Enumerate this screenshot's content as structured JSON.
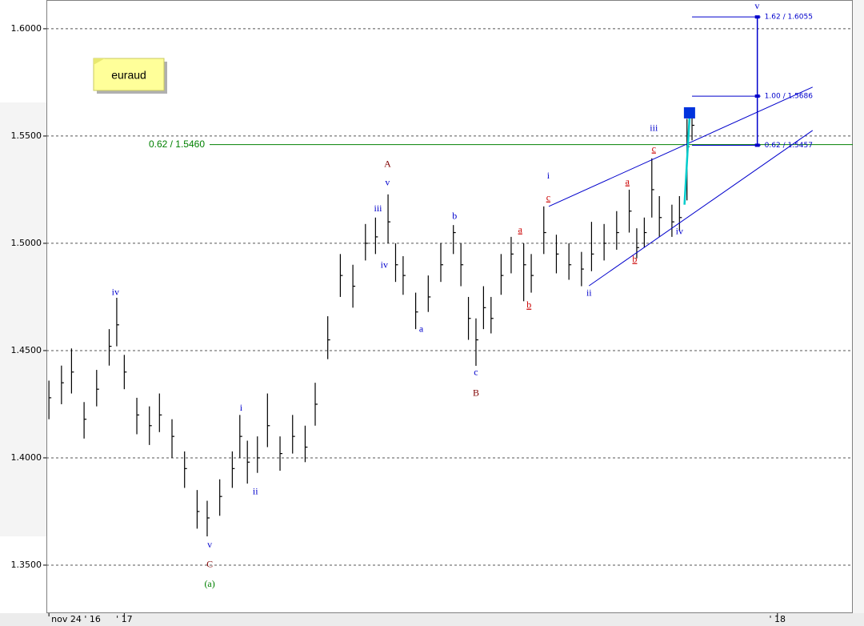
{
  "chart_data": {
    "type": "ohlc",
    "title": "euraud",
    "xlim": [
      -31,
      290
    ],
    "ylim": [
      1.3276,
      1.6134
    ],
    "yticks": [
      {
        "value": 1.35,
        "label": "1.3500"
      },
      {
        "value": 1.4,
        "label": "1.4000"
      },
      {
        "value": 1.45,
        "label": "1.4500"
      },
      {
        "value": 1.5,
        "label": "1.5000"
      },
      {
        "value": 1.55,
        "label": "1.5500"
      },
      {
        "value": 1.6,
        "label": "1.6000"
      }
    ],
    "xticks": [
      {
        "value": -30,
        "label": "nov 24 ' 16"
      },
      {
        "value": 0,
        "label": "' 17"
      },
      {
        "value": 260,
        "label": "' 18"
      }
    ],
    "grid": true,
    "color": "#000000",
    "x": [
      -30,
      -25,
      -21,
      -16,
      -11,
      -6,
      -3,
      0,
      5,
      10,
      14,
      19,
      24,
      29,
      33,
      38,
      43,
      46,
      49,
      53,
      57,
      62,
      67,
      72,
      76,
      81,
      86,
      91,
      96,
      100,
      105,
      108,
      111,
      116,
      121,
      126,
      131,
      134,
      137,
      140,
      143,
      146,
      150,
      154,
      159,
      162,
      167,
      172,
      177,
      182,
      186,
      191,
      196,
      201,
      204,
      207,
      210,
      213,
      218,
      221,
      224,
      226
    ],
    "high": [
      1.436,
      1.443,
      1.451,
      1.426,
      1.441,
      1.46,
      1.4746,
      1.448,
      1.428,
      1.424,
      1.43,
      1.418,
      1.403,
      1.385,
      1.38,
      1.39,
      1.403,
      1.42,
      1.408,
      1.41,
      1.43,
      1.41,
      1.42,
      1.415,
      1.435,
      1.466,
      1.495,
      1.49,
      1.509,
      1.512,
      1.5228,
      1.5,
      1.494,
      1.477,
      1.485,
      1.5,
      1.5085,
      1.5,
      1.475,
      1.465,
      1.48,
      1.475,
      1.495,
      1.503,
      1.5,
      1.495,
      1.5172,
      1.504,
      1.5,
      1.496,
      1.51,
      1.509,
      1.515,
      1.525,
      1.507,
      1.512,
      1.5396,
      1.522,
      1.518,
      1.522,
      1.558,
      1.563
    ],
    "low": [
      1.418,
      1.425,
      1.43,
      1.409,
      1.424,
      1.443,
      1.452,
      1.432,
      1.411,
      1.406,
      1.412,
      1.4,
      1.386,
      1.367,
      1.3634,
      1.373,
      1.386,
      1.4,
      1.388,
      1.393,
      1.405,
      1.394,
      1.402,
      1.398,
      1.415,
      1.446,
      1.475,
      1.47,
      1.492,
      1.495,
      1.5,
      1.482,
      1.476,
      1.46,
      1.468,
      1.482,
      1.495,
      1.48,
      1.455,
      1.4429,
      1.46,
      1.458,
      1.476,
      1.486,
      1.473,
      1.477,
      1.495,
      1.486,
      1.483,
      1.48,
      1.487,
      1.492,
      1.497,
      1.505,
      1.493,
      1.498,
      1.512,
      1.503,
      1.503,
      1.506,
      1.52,
      1.548
    ],
    "close": [
      1.428,
      1.435,
      1.44,
      1.418,
      1.432,
      1.452,
      1.462,
      1.44,
      1.42,
      1.415,
      1.42,
      1.41,
      1.395,
      1.375,
      1.372,
      1.382,
      1.395,
      1.41,
      1.398,
      1.4,
      1.415,
      1.402,
      1.41,
      1.405,
      1.425,
      1.455,
      1.485,
      1.48,
      1.5,
      1.503,
      1.51,
      1.49,
      1.485,
      1.468,
      1.475,
      1.49,
      1.505,
      1.49,
      1.465,
      1.455,
      1.47,
      1.465,
      1.485,
      1.495,
      1.49,
      1.485,
      1.505,
      1.495,
      1.49,
      1.488,
      1.495,
      1.5,
      1.505,
      1.515,
      1.498,
      1.505,
      1.525,
      1.512,
      1.51,
      1.512,
      1.545,
      1.555
    ],
    "level": {
      "label": "0.62 / 1.5460",
      "value": 1.546,
      "color": "#008000"
    },
    "trendlines": [
      {
        "x1": 169,
        "y1": 1.5172,
        "x2": 274,
        "y2": 1.5728,
        "color": "#0000cc"
      },
      {
        "x1": 185,
        "y1": 1.4802,
        "x2": 274,
        "y2": 1.5526,
        "color": "#0000cc"
      },
      {
        "x1": 223,
        "y1": 1.518,
        "x2": 225,
        "y2": 1.5585,
        "color": "#00cccc"
      }
    ],
    "marker": {
      "x": 225,
      "y": 1.5608,
      "color": "#0033dd"
    },
    "fib": {
      "x": 252,
      "start_x": 226,
      "color": "#0000cc",
      "levels": [
        {
          "label": "1.62 / 1.6055",
          "value": 1.6055
        },
        {
          "label": "1.00 / 1.5686",
          "value": 1.5686
        },
        {
          "label": "0.62 / 1.5457",
          "value": 1.5457
        }
      ]
    },
    "annotations": [
      {
        "text": "iv",
        "x": -3.5,
        "y": 1.4769,
        "color": "#0000cc"
      },
      {
        "text": "v",
        "x": 34,
        "y": 1.3593,
        "color": "#0000cc"
      },
      {
        "text": "C",
        "x": 34,
        "y": 1.35,
        "color": "#800000"
      },
      {
        "text": "(a)",
        "x": 34,
        "y": 1.341,
        "color": "#008000"
      },
      {
        "text": "i",
        "x": 46.5,
        "y": 1.4231,
        "color": "#0000cc"
      },
      {
        "text": "ii",
        "x": 52.2,
        "y": 1.384,
        "color": "#0000cc"
      },
      {
        "text": "iii",
        "x": 101,
        "y": 1.516,
        "color": "#0000cc"
      },
      {
        "text": "iv",
        "x": 103.5,
        "y": 1.4896,
        "color": "#0000cc"
      },
      {
        "text": "v",
        "x": 104.8,
        "y": 1.528,
        "color": "#0000cc"
      },
      {
        "text": "A",
        "x": 104.8,
        "y": 1.5366,
        "color": "#800000"
      },
      {
        "text": "a",
        "x": 118.2,
        "y": 1.4597,
        "color": "#0000cc"
      },
      {
        "text": "b",
        "x": 131.5,
        "y": 1.5123,
        "color": "#0000cc"
      },
      {
        "text": "c",
        "x": 140,
        "y": 1.4396,
        "color": "#0000cc"
      },
      {
        "text": "B",
        "x": 140,
        "y": 1.4299,
        "color": "#800000"
      },
      {
        "text": "a",
        "x": 157.6,
        "y": 1.506,
        "color": "#cc0000",
        "underline": true
      },
      {
        "text": "b",
        "x": 161.1,
        "y": 1.4709,
        "color": "#cc0000",
        "underline": true
      },
      {
        "text": "i",
        "x": 168.8,
        "y": 1.5313,
        "color": "#0000cc"
      },
      {
        "text": "c",
        "x": 168.8,
        "y": 1.5209,
        "color": "#cc0000",
        "underline": true
      },
      {
        "text": "ii",
        "x": 185,
        "y": 1.4765,
        "color": "#0000cc"
      },
      {
        "text": "a",
        "x": 200.3,
        "y": 1.5284,
        "color": "#cc0000",
        "underline": true
      },
      {
        "text": "b",
        "x": 203.2,
        "y": 1.4922,
        "color": "#cc0000",
        "underline": true
      },
      {
        "text": "iii",
        "x": 210.8,
        "y": 1.5534,
        "color": "#0000cc"
      },
      {
        "text": "c",
        "x": 210.8,
        "y": 1.5437,
        "color": "#cc0000",
        "underline": true
      },
      {
        "text": "iv",
        "x": 221,
        "y": 1.5052,
        "color": "#0000cc"
      },
      {
        "text": "v",
        "x": 251.9,
        "y": 1.6104,
        "color": "#0000cc"
      }
    ]
  }
}
